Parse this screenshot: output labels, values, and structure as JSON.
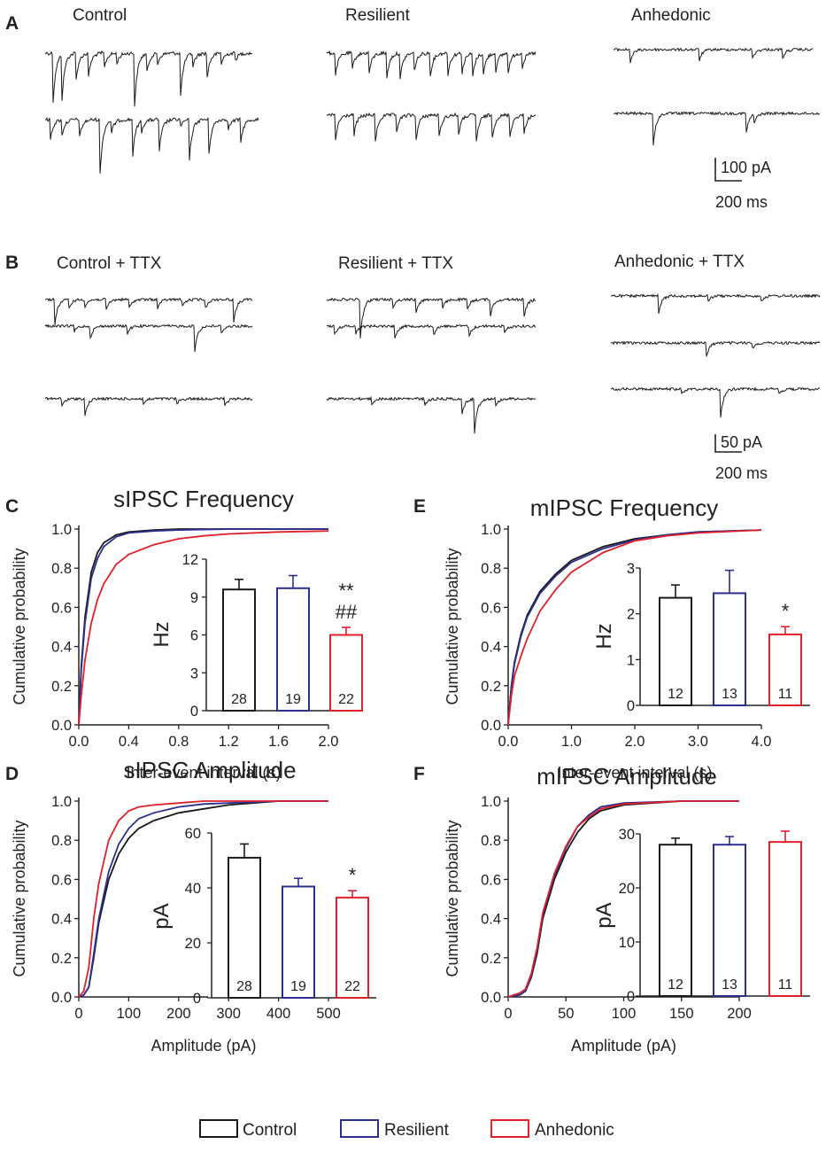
{
  "panel_labels": [
    "A",
    "B",
    "C",
    "D",
    "E",
    "F"
  ],
  "colors": {
    "control": "#1a1a1a",
    "resilient": "#2b2f8f",
    "anhedonic": "#e0202a"
  },
  "traces_a": {
    "groups": [
      "Control",
      "Resilient",
      "Anhedonic"
    ],
    "scale_current": "100 pA",
    "scale_time": "200 ms"
  },
  "traces_b": {
    "groups": [
      "Control + TTX",
      "Resilient + TTX",
      "Anhedonic + TTX"
    ],
    "scale_current": "50 pA",
    "scale_time": "200 ms"
  },
  "legend": [
    "Control",
    "Resilient",
    "Anhedonic"
  ],
  "chart_data": [
    {
      "panel": "C",
      "type": "line",
      "title": "sIPSC Frequency",
      "xlabel": "Inter-event interval (s)",
      "ylabel": "Cumulative probability",
      "xlim": [
        0,
        2.0
      ],
      "ylim": [
        0,
        1.0
      ],
      "xticks": [
        "0.0",
        "0.4",
        "0.8",
        "1.2",
        "1.6",
        "2.0"
      ],
      "yticks": [
        "0.0",
        "0.2",
        "0.4",
        "0.6",
        "0.8",
        "1.0"
      ],
      "series": [
        {
          "name": "Control",
          "x": [
            0,
            0.02,
            0.05,
            0.1,
            0.15,
            0.2,
            0.3,
            0.4,
            0.6,
            0.8,
            1.2,
            2.0
          ],
          "y": [
            0,
            0.3,
            0.55,
            0.78,
            0.88,
            0.93,
            0.97,
            0.985,
            0.995,
            1.0,
            1.0,
            1.0
          ]
        },
        {
          "name": "Resilient",
          "x": [
            0,
            0.02,
            0.05,
            0.1,
            0.15,
            0.2,
            0.3,
            0.4,
            0.6,
            0.8,
            1.2,
            2.0
          ],
          "y": [
            0,
            0.28,
            0.52,
            0.75,
            0.85,
            0.91,
            0.96,
            0.98,
            0.99,
            0.995,
            1.0,
            1.0
          ]
        },
        {
          "name": "Anhedonic",
          "x": [
            0,
            0.02,
            0.05,
            0.1,
            0.15,
            0.2,
            0.3,
            0.4,
            0.6,
            0.8,
            1.0,
            1.2,
            1.6,
            2.0
          ],
          "y": [
            0,
            0.15,
            0.33,
            0.52,
            0.64,
            0.72,
            0.82,
            0.87,
            0.92,
            0.95,
            0.965,
            0.975,
            0.985,
            0.99
          ]
        }
      ],
      "inset": {
        "type": "bar",
        "ylabel": "Hz",
        "ylim": [
          0,
          12
        ],
        "yticks": [
          "0",
          "3",
          "6",
          "9",
          "12"
        ],
        "categories": [
          "Control",
          "Resilient",
          "Anhedonic"
        ],
        "values": [
          9.6,
          9.7,
          6.0
        ],
        "errors": [
          0.8,
          1.0,
          0.6
        ],
        "n": [
          "28",
          "19",
          "22"
        ],
        "annotation": {
          "bar": 2,
          "lines": [
            "**",
            "##"
          ]
        }
      }
    },
    {
      "panel": "D",
      "type": "line",
      "title": "sIPSC Amplitude",
      "xlabel": "Amplitude (pA)",
      "ylabel": "Cumulative probability",
      "xlim": [
        0,
        500
      ],
      "ylim": [
        0,
        1.0
      ],
      "xticks": [
        "0",
        "100",
        "200",
        "300",
        "400",
        "500"
      ],
      "yticks": [
        "0.0",
        "0.2",
        "0.4",
        "0.6",
        "0.8",
        "1.0"
      ],
      "series": [
        {
          "name": "Control",
          "x": [
            0,
            10,
            20,
            30,
            40,
            60,
            80,
            100,
            120,
            150,
            200,
            250,
            300,
            400,
            500
          ],
          "y": [
            0,
            0.01,
            0.05,
            0.2,
            0.38,
            0.6,
            0.73,
            0.81,
            0.86,
            0.9,
            0.94,
            0.96,
            0.98,
            1.0,
            1.0
          ]
        },
        {
          "name": "Resilient",
          "x": [
            0,
            10,
            20,
            30,
            40,
            60,
            80,
            100,
            120,
            150,
            200,
            250,
            300,
            400,
            500
          ],
          "y": [
            0,
            0.01,
            0.05,
            0.22,
            0.4,
            0.64,
            0.78,
            0.86,
            0.91,
            0.94,
            0.97,
            0.985,
            0.99,
            1.0,
            1.0
          ]
        },
        {
          "name": "Anhedonic",
          "x": [
            0,
            10,
            20,
            30,
            40,
            60,
            80,
            100,
            120,
            150,
            200,
            250,
            300,
            400,
            500
          ],
          "y": [
            0,
            0.03,
            0.15,
            0.4,
            0.58,
            0.8,
            0.9,
            0.95,
            0.97,
            0.98,
            0.99,
            1.0,
            1.0,
            1.0,
            1.0
          ]
        }
      ],
      "inset": {
        "type": "bar",
        "ylabel": "pA",
        "ylim": [
          0,
          60
        ],
        "yticks": [
          "0",
          "20",
          "40",
          "60"
        ],
        "categories": [
          "Control",
          "Resilient",
          "Anhedonic"
        ],
        "values": [
          51,
          40.5,
          36.5
        ],
        "errors": [
          5,
          3,
          2.5
        ],
        "n": [
          "28",
          "19",
          "22"
        ],
        "annotation": {
          "bar": 2,
          "lines": [
            "*"
          ]
        }
      }
    },
    {
      "panel": "E",
      "type": "line",
      "title": "mIPSC Frequency",
      "xlabel": "Inter-event interval (s)",
      "ylabel": "Cumulative probability",
      "xlim": [
        0,
        4.0
      ],
      "ylim": [
        0,
        1.0
      ],
      "xticks": [
        "0.0",
        "1.0",
        "2.0",
        "3.0",
        "4.0"
      ],
      "yticks": [
        "0.0",
        "0.2",
        "0.4",
        "0.6",
        "0.8",
        "1.0"
      ],
      "series": [
        {
          "name": "Control",
          "x": [
            0,
            0.05,
            0.1,
            0.2,
            0.3,
            0.5,
            0.75,
            1.0,
            1.5,
            2.0,
            2.5,
            3.0,
            4.0
          ],
          "y": [
            0,
            0.2,
            0.32,
            0.46,
            0.56,
            0.68,
            0.77,
            0.84,
            0.91,
            0.95,
            0.97,
            0.985,
            0.995
          ]
        },
        {
          "name": "Resilient",
          "x": [
            0,
            0.05,
            0.1,
            0.2,
            0.3,
            0.5,
            0.75,
            1.0,
            1.5,
            2.0,
            2.5,
            3.0,
            4.0
          ],
          "y": [
            0,
            0.19,
            0.31,
            0.45,
            0.55,
            0.67,
            0.76,
            0.83,
            0.9,
            0.945,
            0.97,
            0.985,
            0.995
          ]
        },
        {
          "name": "Anhedonic",
          "x": [
            0,
            0.05,
            0.1,
            0.2,
            0.3,
            0.5,
            0.75,
            1.0,
            1.5,
            2.0,
            2.5,
            3.0,
            4.0
          ],
          "y": [
            0,
            0.15,
            0.25,
            0.35,
            0.44,
            0.58,
            0.69,
            0.78,
            0.88,
            0.94,
            0.965,
            0.98,
            0.995
          ]
        }
      ],
      "inset": {
        "type": "bar",
        "ylabel": "Hz",
        "ylim": [
          0,
          3
        ],
        "yticks": [
          "0",
          "1",
          "2",
          "3"
        ],
        "categories": [
          "Control",
          "Resilient",
          "Anhedonic"
        ],
        "values": [
          2.35,
          2.45,
          1.55
        ],
        "errors": [
          0.28,
          0.5,
          0.17
        ],
        "n": [
          "12",
          "13",
          "11"
        ],
        "annotation": {
          "bar": 2,
          "lines": [
            "*"
          ]
        }
      }
    },
    {
      "panel": "F",
      "type": "line",
      "title": "mIPSC Amplitude",
      "xlabel": "Amplitude (pA)",
      "ylabel": "Cumulative probability",
      "xlim": [
        0,
        200
      ],
      "ylim": [
        0,
        1.0
      ],
      "xticks": [
        "0",
        "50",
        "100",
        "150",
        "200"
      ],
      "yticks": [
        "0.0",
        "0.2",
        "0.4",
        "0.6",
        "0.8",
        "1.0"
      ],
      "series": [
        {
          "name": "Control",
          "x": [
            0,
            10,
            15,
            20,
            25,
            30,
            40,
            50,
            60,
            70,
            80,
            100,
            150,
            200
          ],
          "y": [
            0,
            0.01,
            0.03,
            0.1,
            0.22,
            0.4,
            0.6,
            0.74,
            0.84,
            0.91,
            0.95,
            0.98,
            1.0,
            1.0
          ]
        },
        {
          "name": "Resilient",
          "x": [
            0,
            10,
            15,
            20,
            25,
            30,
            40,
            50,
            60,
            70,
            80,
            100,
            150,
            200
          ],
          "y": [
            0,
            0.01,
            0.03,
            0.11,
            0.24,
            0.42,
            0.62,
            0.76,
            0.87,
            0.93,
            0.97,
            0.99,
            1.0,
            1.0
          ]
        },
        {
          "name": "Anhedonic",
          "x": [
            0,
            10,
            15,
            20,
            25,
            30,
            40,
            50,
            60,
            70,
            80,
            100,
            150,
            200
          ],
          "y": [
            0,
            0.02,
            0.04,
            0.12,
            0.25,
            0.43,
            0.63,
            0.77,
            0.87,
            0.92,
            0.96,
            0.985,
            1.0,
            1.0
          ]
        }
      ],
      "inset": {
        "type": "bar",
        "ylabel": "pA",
        "ylim": [
          0,
          30
        ],
        "yticks": [
          "0",
          "10",
          "20",
          "30"
        ],
        "categories": [
          "Control",
          "Resilient",
          "Anhedonic"
        ],
        "values": [
          28,
          28,
          28.5
        ],
        "errors": [
          1.2,
          1.5,
          2.0
        ],
        "n": [
          "12",
          "13",
          "11"
        ],
        "annotation": null
      }
    }
  ]
}
